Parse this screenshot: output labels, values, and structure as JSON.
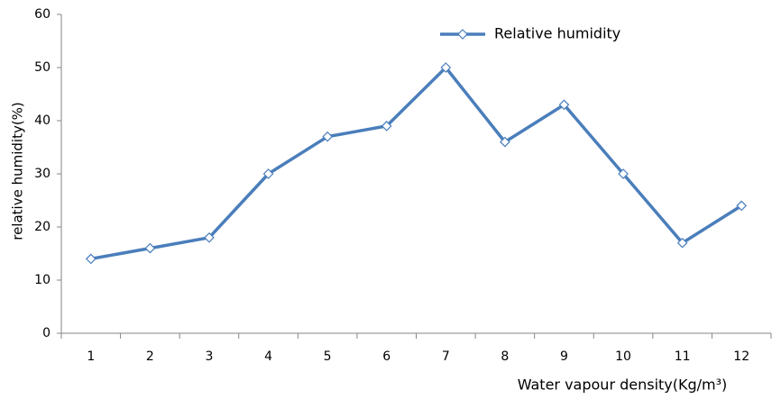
{
  "chart_data": {
    "type": "line",
    "categories": [
      "1",
      "2",
      "3",
      "4",
      "5",
      "6",
      "7",
      "8",
      "9",
      "10",
      "11",
      "12"
    ],
    "series": [
      {
        "name": "Relative humidity",
        "color": "#4a7ebb",
        "values": [
          14,
          16,
          18,
          30,
          37,
          39,
          50,
          36,
          43,
          30,
          17,
          24
        ]
      }
    ],
    "ylim": [
      0,
      60
    ],
    "yticks": [
      0,
      10,
      20,
      30,
      40,
      50,
      60
    ],
    "x_label": "Water vapour density(Kg/m³)",
    "y_label": "relative humidity(%)",
    "grid": false,
    "legend_position": "top"
  }
}
